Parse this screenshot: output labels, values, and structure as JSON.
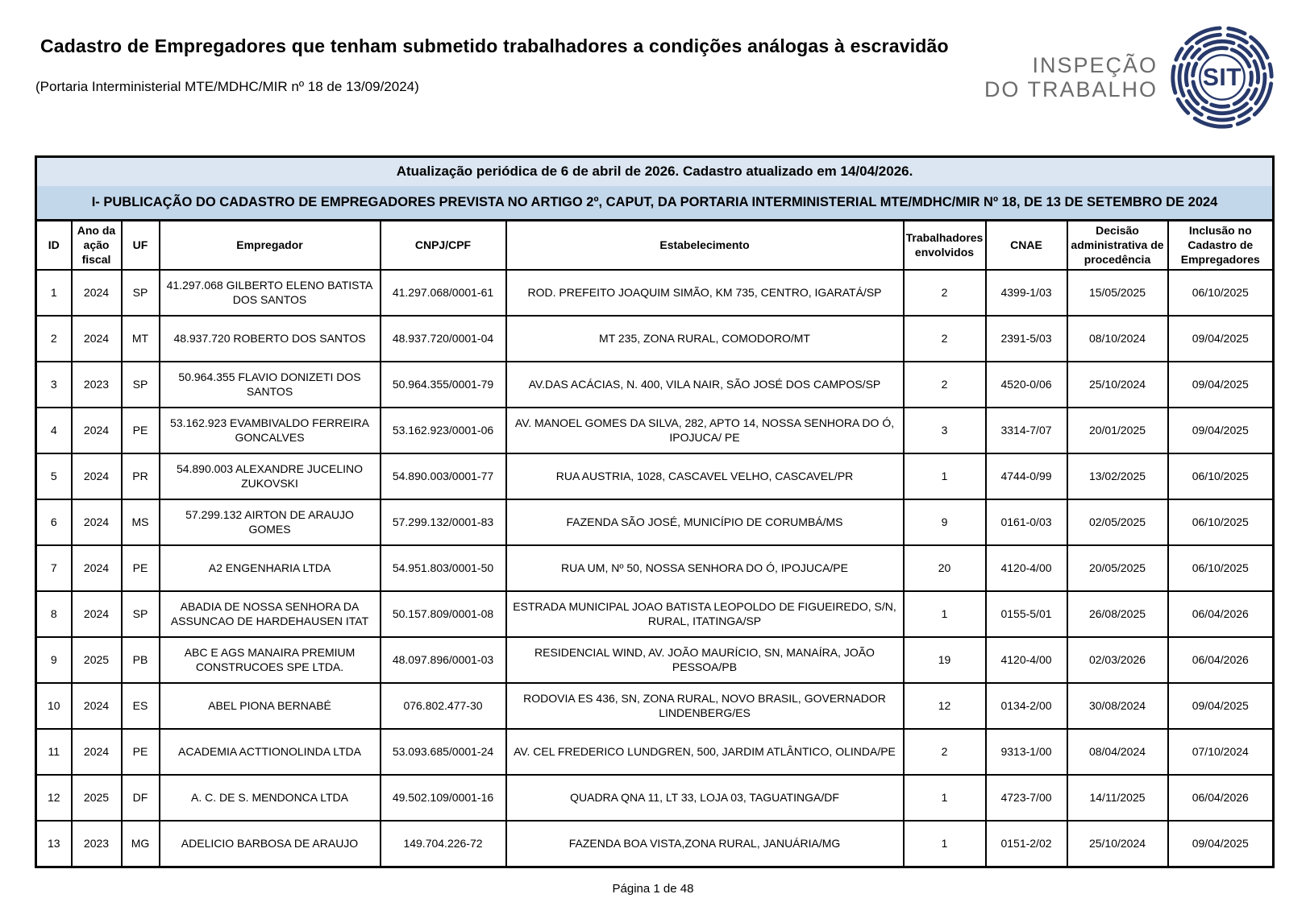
{
  "page": {
    "title": "Cadastro de Empregadores que tenham submetido trabalhadores a condições análogas à escravidão",
    "subtitle": "(Portaria Interministerial MTE/MDHC/MIR nº 18 de 13/09/2024)",
    "footer": "Página 1 de 48"
  },
  "logo": {
    "wordmark_line1": "INSPEÇÃO",
    "wordmark_line2": "DO TRABALHO",
    "acronym": "SIT",
    "navy": "#28396b",
    "gray": "#6b6b6b"
  },
  "colors": {
    "update_bar_bg": "#dbe6f2",
    "section_bar_bg": "#c3d7eb",
    "border": "#000000"
  },
  "table": {
    "update_notice": "Atualização periódica de 6 de abril de 2026. Cadastro atualizado em 14/04/2026.",
    "section_title": "I- PUBLICAÇÃO DO CADASTRO DE EMPREGADORES PREVISTA NO ARTIGO 2º, CAPUT, DA PORTARIA INTERMINISTERIAL MTE/MDHC/MIR Nº 18, DE 13 DE SETEMBRO DE 2024",
    "columns": [
      "ID",
      "Ano da ação fiscal",
      "UF",
      "Empregador",
      "CNPJ/CPF",
      "Estabelecimento",
      "Trabalhadores envolvidos",
      "CNAE",
      "Decisão administrativa de procedência",
      "Inclusão no Cadastro de Empregadores"
    ],
    "rows": [
      [
        "1",
        "2024",
        "SP",
        "41.297.068 GILBERTO ELENO BATISTA DOS SANTOS",
        "41.297.068/0001-61",
        "ROD. PREFEITO JOAQUIM SIMÃO, KM 735, CENTRO, IGARATÁ/SP",
        "2",
        "4399-1/03",
        "15/05/2025",
        "06/10/2025"
      ],
      [
        "2",
        "2024",
        "MT",
        "48.937.720 ROBERTO DOS SANTOS",
        "48.937.720/0001-04",
        "MT 235, ZONA RURAL, COMODORO/MT",
        "2",
        "2391-5/03",
        "08/10/2024",
        "09/04/2025"
      ],
      [
        "3",
        "2023",
        "SP",
        "50.964.355 FLAVIO DONIZETI DOS SANTOS",
        "50.964.355/0001-79",
        "AV.DAS ACÁCIAS, N. 400, VILA NAIR, SÃO JOSÉ DOS CAMPOS/SP",
        "2",
        "4520-0/06",
        "25/10/2024",
        "09/04/2025"
      ],
      [
        "4",
        "2024",
        "PE",
        "53.162.923 EVAMBIVALDO FERREIRA GONCALVES",
        "53.162.923/0001-06",
        "AV. MANOEL GOMES DA SILVA, 282, APTO 14, NOSSA SENHORA DO Ó, IPOJUCA/ PE",
        "3",
        "3314-7/07",
        "20/01/2025",
        "09/04/2025"
      ],
      [
        "5",
        "2024",
        "PR",
        "54.890.003 ALEXANDRE JUCELINO ZUKOVSKI",
        "54.890.003/0001-77",
        "RUA AUSTRIA, 1028, CASCAVEL VELHO, CASCAVEL/PR",
        "1",
        "4744-0/99",
        "13/02/2025",
        "06/10/2025"
      ],
      [
        "6",
        "2024",
        "MS",
        "57.299.132 AIRTON DE ARAUJO GOMES",
        "57.299.132/0001-83",
        "FAZENDA SÃO JOSÉ, MUNICÍPIO DE CORUMBÁ/MS",
        "9",
        "0161-0/03",
        "02/05/2025",
        "06/10/2025"
      ],
      [
        "7",
        "2024",
        "PE",
        "A2 ENGENHARIA LTDA",
        "54.951.803/0001-50",
        "RUA UM, Nº 50, NOSSA SENHORA DO Ó, IPOJUCA/PE",
        "20",
        "4120-4/00",
        "20/05/2025",
        "06/10/2025"
      ],
      [
        "8",
        "2024",
        "SP",
        "ABADIA DE NOSSA SENHORA DA ASSUNCAO DE HARDEHAUSEN ITAT",
        "50.157.809/0001-08",
        "ESTRADA MUNICIPAL JOAO BATISTA LEOPOLDO DE FIGUEIREDO, S/N, RURAL, ITATINGA/SP",
        "1",
        "0155-5/01",
        "26/08/2025",
        "06/04/2026"
      ],
      [
        "9",
        "2025",
        "PB",
        "ABC E AGS MANAIRA PREMIUM CONSTRUCOES SPE LTDA.",
        "48.097.896/0001-03",
        "RESIDENCIAL WIND, AV. JOÃO MAURÍCIO, SN, MANAÍRA, JOÃO PESSOA/PB",
        "19",
        "4120-4/00",
        "02/03/2026",
        "06/04/2026"
      ],
      [
        "10",
        "2024",
        "ES",
        "ABEL PIONA BERNABÉ",
        "076.802.477-30",
        "RODOVIA ES 436, SN, ZONA RURAL, NOVO BRASIL, GOVERNADOR LINDENBERG/ES",
        "12",
        "0134-2/00",
        "30/08/2024",
        "09/04/2025"
      ],
      [
        "11",
        "2024",
        "PE",
        "ACADEMIA ACTTIONOLINDA LTDA",
        "53.093.685/0001-24",
        "AV. CEL FREDERICO LUNDGREN, 500, JARDIM ATLÂNTICO, OLINDA/PE",
        "2",
        "9313-1/00",
        "08/04/2024",
        "07/10/2024"
      ],
      [
        "12",
        "2025",
        "DF",
        "A. C. DE S. MENDONCA LTDA",
        "49.502.109/0001-16",
        "QUADRA QNA 11, LT 33, LOJA 03, TAGUATINGA/DF",
        "1",
        "4723-7/00",
        "14/11/2025",
        "06/04/2026"
      ],
      [
        "13",
        "2023",
        "MG",
        "ADELICIO BARBOSA DE ARAUJO",
        "149.704.226-72",
        "FAZENDA BOA VISTA,ZONA RURAL, JANUÁRIA/MG",
        "1",
        "0151-2/02",
        "25/10/2024",
        "09/04/2025"
      ]
    ]
  }
}
